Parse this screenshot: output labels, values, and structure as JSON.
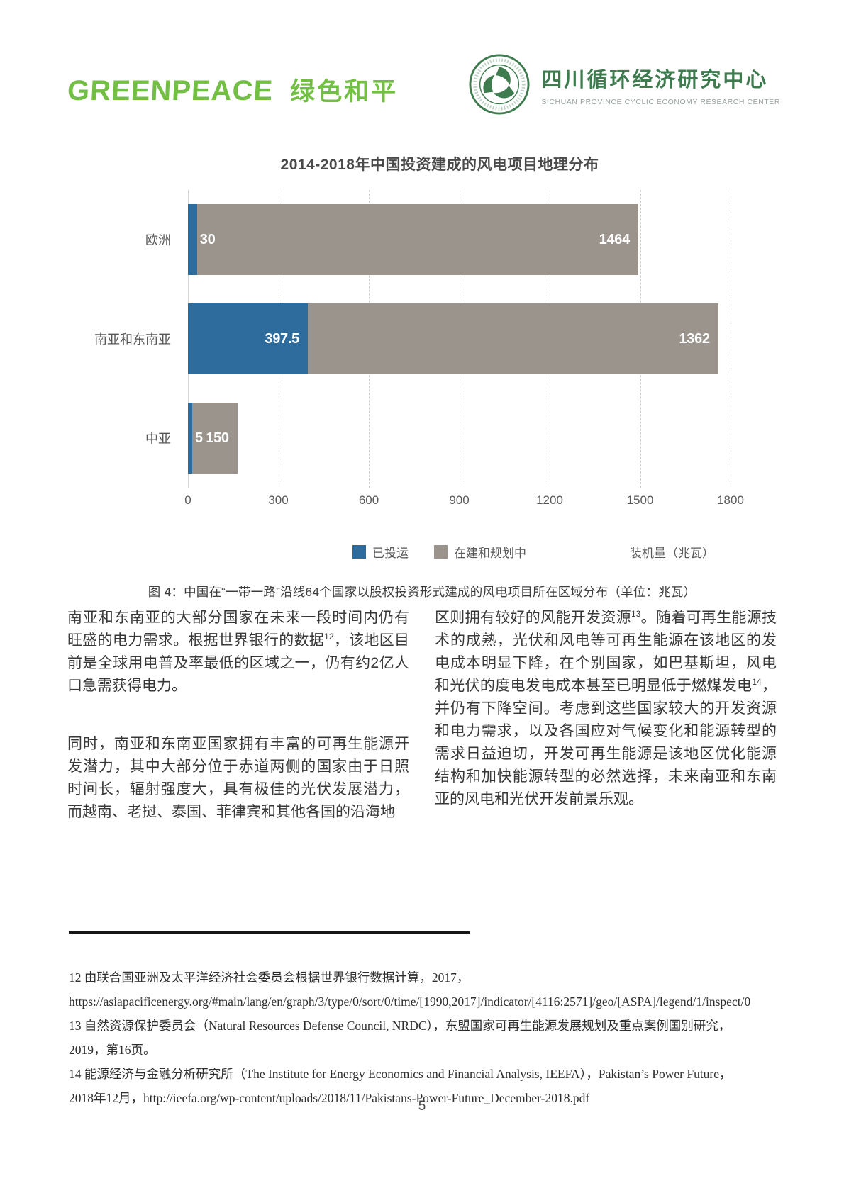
{
  "page_number": "5",
  "header": {
    "greenpeace": {
      "wordmark": "GREENPEACE",
      "chinese": "绿色和平"
    },
    "research_center": {
      "name_zh": "四川循环经济研究中心",
      "name_en": "SICHUAN PROVINCE CYCLIC ECONOMY RESEARCH CENTER"
    }
  },
  "colors": {
    "greenpeace_green": "#72BF44",
    "research_center_green": "#3E7B4F",
    "series_operational_blue": "#2D6C9D",
    "series_planned_gray": "#9A948C"
  },
  "chart_data": {
    "type": "bar",
    "orientation": "horizontal",
    "stacked": true,
    "title": "2014-2018年中国投资建成的风电项目地理分布",
    "categories": [
      "欧洲",
      "南亚和东南亚",
      "中亚"
    ],
    "series": [
      {
        "name": "已投运",
        "color": "#2D6C9D",
        "values": [
          30,
          397.5,
          5
        ]
      },
      {
        "name": "在建和规划中",
        "color": "#9A948C",
        "values": [
          1464,
          1362,
          150
        ]
      }
    ],
    "xlabel": "装机量（兆瓦）",
    "xlim": [
      0,
      1800
    ],
    "xticks": [
      0,
      300,
      600,
      900,
      1200,
      1500,
      1800
    ],
    "grid": "vertical-dashed",
    "legend_position": "bottom"
  },
  "figure_caption": "图 4：中国在“一带一路”沿线64个国家以股权投资形式建成的风电项目所在区域分布（单位：兆瓦）",
  "body": {
    "left_col": {
      "p1_text1": "南亚和东南亚的大部分国家在未来一段时间内仍有旺盛的电力需求。根据世界银行的数据",
      "p1_sup": "12",
      "p1_text2": "，该地区目前是全球用电普及率最低的区域之一，仍有约2亿人口急需获得电力。",
      "p2": "同时，南亚和东南亚国家拥有丰富的可再生能源开发潜力，其中大部分位于赤道两侧的国家由于日照时间长，辐射强度大，具有极佳的光伏发展潜力，而越南、老挝、泰国、菲律宾和其他各国的沿海地"
    },
    "right_col": {
      "p1_text1": "区则拥有较好的风能开发资源",
      "p1_sup1": "13",
      "p1_text2": "。随着可再生能源技术的成熟，光伏和风电等可再生能源在该地区的发电成本明显下降，在个别国家，如巴基斯坦，风电和光伏的度电发电成本甚至已明显低于燃煤发电",
      "p1_sup2": "14",
      "p1_text3": "，并仍有下降空间。考虑到这些国家较大的开发资源和电力需求，以及各国应对气候变化和能源转型的需求日益迫切，开发可再生能源是该地区优化能源结构和加快能源转型的必然选择，未来南亚和东南亚的风电和光伏开发前景乐观。"
    }
  },
  "footnotes": {
    "fn12_line1": "12 由联合国亚洲及太平洋经济社会委员会根据世界银行数据计算，2017，",
    "fn12_line2": "https://asiapacificenergy.org/#main/lang/en/graph/3/type/0/sort/0/time/[1990,2017]/indicator/[4116:2571]/geo/[ASPA]/legend/1/inspect/0",
    "fn13_line1": "13 自然资源保护委员会（Natural Resources Defense Council, NRDC），东盟国家可再生能源发展规划及重点案例国别研究，",
    "fn13_line2": "2019，第16页。",
    "fn14_line1": "14 能源经济与金融分析研究所（The Institute for Energy Economics and Financial Analysis, IEEFA），Pakistan’s Power Future，",
    "fn14_line2": "2018年12月，http://ieefa.org/wp-content/uploads/2018/11/Pakistans-Power-Future_December-2018.pdf"
  }
}
